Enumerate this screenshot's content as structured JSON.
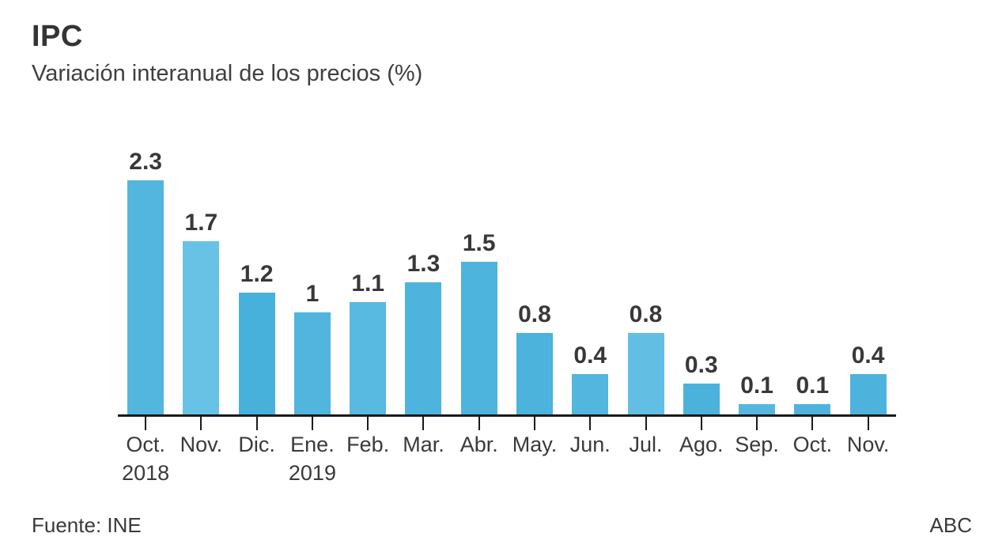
{
  "header": {
    "title": "IPC",
    "subtitle": "Variación interanual de los precios (%)"
  },
  "chart_data": {
    "type": "bar",
    "title": "IPC",
    "subtitle": "Variación interanual de los precios (%)",
    "categories": [
      "Oct.",
      "Nov.",
      "Dic.",
      "Ene.",
      "Feb.",
      "Mar.",
      "Abr.",
      "May.",
      "Jun.",
      "Jul.",
      "Ago.",
      "Sep.",
      "Oct.",
      "Nov."
    ],
    "year_markers": [
      {
        "index": 0,
        "label": "2018"
      },
      {
        "index": 3,
        "label": "2019"
      }
    ],
    "values": [
      2.3,
      1.7,
      1.2,
      1,
      1.1,
      1.3,
      1.5,
      0.8,
      0.4,
      0.8,
      0.3,
      0.1,
      0.1,
      0.4
    ],
    "value_labels": [
      "2.3",
      "1.7",
      "1.2",
      "1",
      "1.1",
      "1.3",
      "1.5",
      "0.8",
      "0.4",
      "0.8",
      "0.3",
      "0.1",
      "0.1",
      "0.4"
    ],
    "xlabel": "",
    "ylabel": "",
    "ylim": [
      0,
      2.5
    ],
    "grid": false,
    "legend": false,
    "data_labels_position": "above-bars",
    "bar_color": "#4fb4dd",
    "bar_colors": [
      "#53b6de",
      "#68c2e5",
      "#48b1db",
      "#51b5de",
      "#58bae0",
      "#4eb4dd",
      "#4db4dd",
      "#4cb3dc",
      "#52b6de",
      "#62bfe3",
      "#4bb2dc",
      "#55b7df",
      "#4fb4dd",
      "#4db3dc"
    ],
    "axis_color": "#1a1a1a",
    "text_color": "#3a3a3a"
  },
  "footer": {
    "source": "Fuente: INE",
    "brand": "ABC"
  }
}
